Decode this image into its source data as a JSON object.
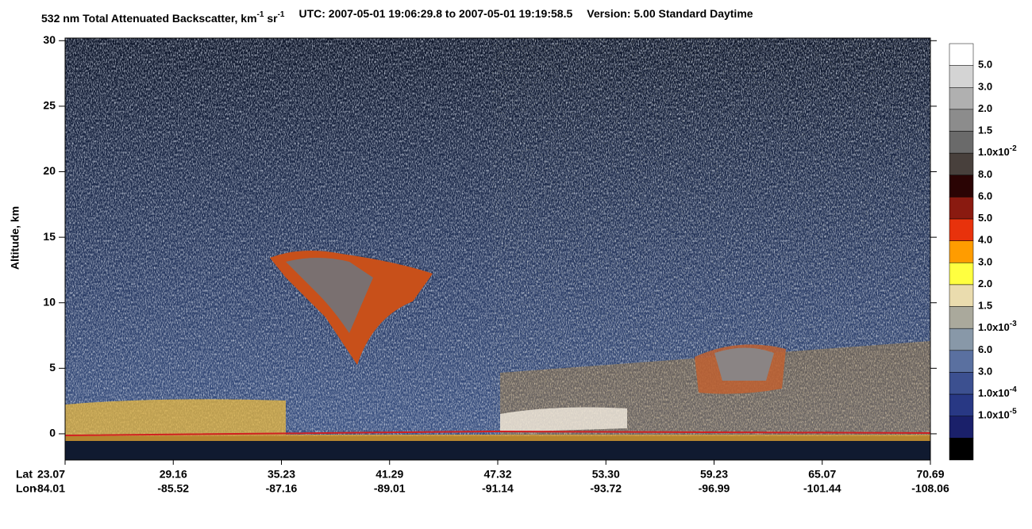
{
  "chart_data": {
    "type": "heatmap",
    "title": [
      "532 nm Total Attenuated Backscatter, km",
      "-1",
      " sr",
      "-1"
    ],
    "subtitle": "UTC:  2007-05-01 19:06:29.8  to  2007-05-01 19:19:58.5",
    "version": "Version: 5.00  Standard  Daytime",
    "y_label": "Altitude, km",
    "ylim": [
      -2,
      30.2
    ],
    "yticks": [
      0,
      5,
      10,
      15,
      20,
      25,
      30
    ],
    "x_row_names": [
      "Lat",
      "Lon"
    ],
    "lat": [
      "23.07",
      "29.16",
      "35.23",
      "41.29",
      "47.32",
      "53.30",
      "59.23",
      "65.07",
      "70.69"
    ],
    "lon": [
      "-84.01",
      "-85.52",
      "-87.16",
      "-89.01",
      "-91.14",
      "-93.72",
      "-96.99",
      "-101.44",
      "-108.06"
    ],
    "colorbar": {
      "colors": [
        "#ffffff",
        "#d4d4d4",
        "#b0b0b0",
        "#8c8c8c",
        "#6a6a6a",
        "#48403c",
        "#2a0404",
        "#8a1a10",
        "#e8320c",
        "#ff9c00",
        "#ffff40",
        "#eadcae",
        "#aaa99c",
        "#8898a8",
        "#5a70a0",
        "#3c5090",
        "#283884",
        "#1a206a",
        "#000000"
      ],
      "labels": [
        {
          "text": "5.0"
        },
        {
          "text": "3.0"
        },
        {
          "text": "2.0"
        },
        {
          "text": "1.5"
        },
        {
          "text": "1.0x10",
          "sup": "-2"
        },
        {
          "text": "8.0"
        },
        {
          "text": "6.0"
        },
        {
          "text": "5.0"
        },
        {
          "text": "4.0"
        },
        {
          "text": "3.0"
        },
        {
          "text": "2.0"
        },
        {
          "text": "1.5"
        },
        {
          "text": "1.0x10",
          "sup": "-3"
        },
        {
          "text": "6.0"
        },
        {
          "text": "3.0"
        },
        {
          "text": "1.0x10",
          "sup": "-4"
        },
        {
          "text": "1.0x10",
          "sup": "-5"
        }
      ]
    }
  }
}
